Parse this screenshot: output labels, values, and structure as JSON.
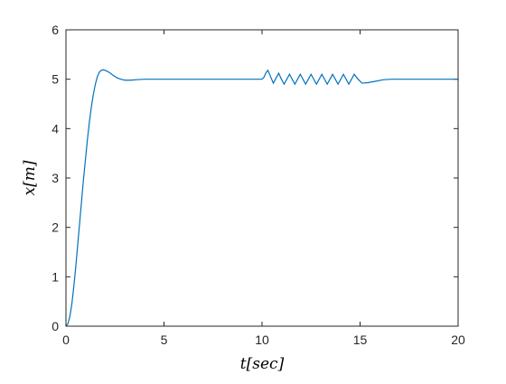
{
  "chart_data": {
    "type": "line",
    "xlabel": "t[sec]",
    "ylabel": "x[m]",
    "x": [
      0,
      0.1,
      0.2,
      0.3,
      0.4,
      0.5,
      0.6,
      0.7,
      0.8,
      0.9,
      1.0,
      1.1,
      1.2,
      1.3,
      1.4,
      1.5,
      1.6,
      1.7,
      1.8,
      1.9,
      2.0,
      2.2,
      2.4,
      2.6,
      2.8,
      3.0,
      3.3,
      3.6,
      4.0,
      5,
      10,
      10.1,
      10.2,
      10.3,
      10.4375,
      10.575,
      10.7125,
      10.85,
      10.9875,
      11.125,
      11.2625,
      11.4,
      11.5375,
      11.675,
      11.8125,
      11.95,
      12.0875,
      12.225,
      12.3625,
      12.5,
      12.6375,
      12.775,
      12.9125,
      13.05,
      13.1875,
      13.325,
      13.4625,
      13.6,
      13.7375,
      13.875,
      14.0125,
      14.15,
      14.2875,
      14.425,
      14.5625,
      14.7,
      14.9,
      15.1,
      15.4,
      15.8,
      16.2,
      16.6,
      20
    ],
    "series": [
      {
        "name": "x",
        "color": "#0072bd",
        "values": [
          0,
          0.05,
          0.2,
          0.45,
          0.8,
          1.2,
          1.65,
          2.1,
          2.55,
          3.0,
          3.4,
          3.8,
          4.15,
          4.45,
          4.7,
          4.9,
          5.05,
          5.14,
          5.18,
          5.19,
          5.18,
          5.14,
          5.08,
          5.03,
          5.0,
          4.98,
          4.98,
          4.99,
          5.0,
          5.0,
          5.0,
          5.04,
          5.13,
          5.18,
          5.05,
          4.92,
          5.02,
          5.12,
          5.0,
          4.9,
          5.0,
          5.1,
          5.0,
          4.9,
          5.0,
          5.1,
          5.0,
          4.9,
          5.0,
          5.1,
          5.0,
          4.9,
          5.0,
          5.1,
          5.0,
          4.9,
          5.0,
          5.1,
          5.0,
          4.9,
          5.0,
          5.1,
          5.0,
          4.9,
          5.0,
          5.1,
          5.0,
          4.92,
          4.93,
          4.96,
          4.99,
          5.0,
          5.0
        ]
      }
    ],
    "xlim": [
      0,
      20
    ],
    "ylim": [
      0,
      6
    ],
    "xticks": [
      0,
      5,
      10,
      15,
      20
    ],
    "yticks": [
      0,
      1,
      2,
      3,
      4,
      5,
      6
    ]
  }
}
